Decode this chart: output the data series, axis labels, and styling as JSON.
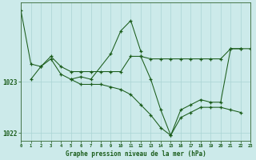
{
  "background_color": "#cceaea",
  "grid_color": "#aad4d4",
  "line_color": "#1a5c1a",
  "xlabel": "Graphe pression niveau de la mer (hPa)",
  "xlim": [
    0,
    23
  ],
  "ylim": [
    1021.85,
    1024.55
  ],
  "yticks": [
    1022,
    1023
  ],
  "series": [
    {
      "x": [
        0,
        1,
        2,
        3,
        4,
        5,
        6,
        7,
        8,
        9,
        10,
        11,
        12,
        13,
        14,
        15,
        16,
        17,
        18,
        19,
        20,
        21,
        22,
        23
      ],
      "y": [
        1024.4,
        1023.35,
        1023.3,
        1023.5,
        1023.3,
        1023.2,
        1023.2,
        1023.2,
        1023.2,
        1023.2,
        1023.2,
        1023.5,
        1023.5,
        1023.45,
        1023.45,
        1023.45,
        1023.45,
        1023.45,
        1023.45,
        1023.45,
        1023.45,
        1023.65,
        1023.65,
        1023.65
      ]
    },
    {
      "x": [
        1,
        2,
        3,
        4,
        5,
        6,
        7,
        9,
        10,
        11,
        12
      ],
      "y": [
        1023.05,
        1023.3,
        1023.45,
        1023.15,
        1023.05,
        1023.1,
        1023.05,
        1023.55,
        1024.0,
        1024.2,
        1023.6
      ]
    },
    {
      "x": [
        5,
        6,
        7,
        8,
        9,
        10,
        11,
        12,
        13,
        14,
        15,
        16,
        17,
        18,
        19,
        20,
        21,
        22
      ],
      "y": [
        1023.05,
        1022.95,
        1022.95,
        1022.95,
        1022.9,
        1022.85,
        1022.75,
        1022.55,
        1022.35,
        1022.1,
        1021.95,
        1022.3,
        1022.4,
        1022.5,
        1022.5,
        1022.5,
        1022.45,
        1022.4
      ]
    },
    {
      "x": [
        12,
        13,
        14,
        15,
        16,
        17,
        18,
        19,
        20,
        21,
        22
      ],
      "y": [
        1023.5,
        1023.05,
        1022.45,
        1021.95,
        1022.45,
        1022.55,
        1022.65,
        1022.6,
        1022.6,
        1023.65,
        1023.65
      ]
    }
  ]
}
